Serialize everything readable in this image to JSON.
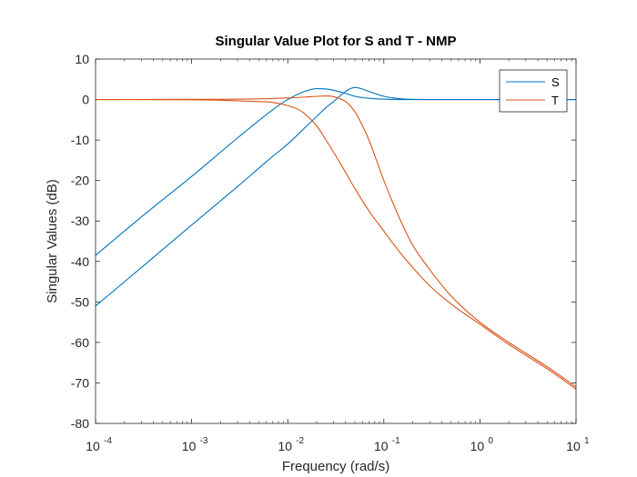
{
  "chart_data": {
    "type": "line",
    "title": "Singular Value Plot for S and T - NMP",
    "xlabel": "Frequency (rad/s)",
    "ylabel": "Singular Values (dB)",
    "xscale": "log",
    "xlim": [
      0.0001,
      10
    ],
    "ylim": [
      -80,
      10
    ],
    "xtick_base": "10",
    "xticks": [
      {
        "value": 0.0001,
        "exponent": "-4"
      },
      {
        "value": 0.001,
        "exponent": "-3"
      },
      {
        "value": 0.01,
        "exponent": "-2"
      },
      {
        "value": 0.1,
        "exponent": "-1"
      },
      {
        "value": 1,
        "exponent": "0"
      },
      {
        "value": 10,
        "exponent": "1"
      }
    ],
    "yticks": [
      10,
      0,
      -10,
      -20,
      -30,
      -40,
      -50,
      -60,
      -70,
      -80
    ],
    "grid": false,
    "legend_position": "top-right",
    "colors": {
      "S": "#0072BD",
      "T": "#D95319",
      "axis": "#262626"
    },
    "series": [
      {
        "name": "S",
        "color": "#0072BD",
        "lines": [
          {
            "x": [
              0.0001,
              0.0003,
              0.001,
              0.003,
              0.007,
              0.01,
              0.015,
              0.02,
              0.025,
              0.03,
              0.04,
              0.05,
              0.07,
              0.1,
              0.15,
              0.3,
              1,
              3,
              10
            ],
            "y": [
              -38.5,
              -29,
              -19,
              -9.5,
              -2.5,
              0,
              2,
              2.7,
              2.6,
              2.3,
              1.5,
              0.8,
              0.3,
              0.1,
              0,
              0,
              0,
              0,
              0
            ]
          },
          {
            "x": [
              0.0001,
              0.0003,
              0.001,
              0.003,
              0.007,
              0.01,
              0.015,
              0.02,
              0.025,
              0.03,
              0.04,
              0.045,
              0.05,
              0.06,
              0.07,
              0.1,
              0.15,
              0.2,
              0.3,
              1,
              10
            ],
            "y": [
              -51,
              -41.5,
              -31,
              -21.5,
              -14,
              -11,
              -7,
              -4.2,
              -2,
              -0.5,
              2,
              2.7,
              3,
              2.6,
              2,
              0.8,
              0.2,
              0.05,
              0,
              0,
              0
            ]
          }
        ]
      },
      {
        "name": "T",
        "color": "#D95319",
        "lines": [
          {
            "x": [
              0.0001,
              0.001,
              0.003,
              0.005,
              0.007,
              0.01,
              0.013,
              0.015,
              0.02,
              0.025,
              0.03,
              0.04,
              0.05,
              0.07,
              0.1,
              0.15,
              0.2,
              0.3,
              0.5,
              1,
              2,
              5,
              10
            ],
            "y": [
              0,
              -0.05,
              -0.3,
              -0.5,
              -0.7,
              -1.5,
              -2.5,
              -3.5,
              -6.5,
              -10,
              -13,
              -18,
              -22,
              -27.5,
              -32.5,
              -38,
              -41.5,
              -46,
              -50.5,
              -55.5,
              -60.5,
              -66.5,
              -71.5
            ]
          },
          {
            "x": [
              0.0001,
              0.001,
              0.003,
              0.007,
              0.01,
              0.015,
              0.02,
              0.025,
              0.03,
              0.04,
              0.05,
              0.06,
              0.07,
              0.1,
              0.15,
              0.2,
              0.3,
              0.5,
              1,
              2,
              5,
              10
            ],
            "y": [
              0,
              0.05,
              0.1,
              0.25,
              0.4,
              0.6,
              0.8,
              0.9,
              0.7,
              -0.5,
              -3,
              -6.5,
              -10,
              -20,
              -30,
              -36,
              -42,
              -48.5,
              -55,
              -60,
              -66,
              -71
            ]
          }
        ]
      }
    ]
  }
}
